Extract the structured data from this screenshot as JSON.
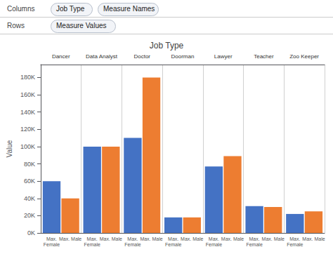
{
  "chart_data": {
    "type": "bar",
    "title": "Job Type",
    "annotations": [
      [
        "Columns",
        "Job Type",
        "Measure Names"
      ],
      [
        "Rows",
        "Measure Values"
      ]
    ],
    "ylabel": "Value",
    "categories": [
      "Dancer",
      "Data Analyst",
      "Doctor",
      "Doorman",
      "Lawyer",
      "Teacher",
      "Zoo Keeper"
    ],
    "series": [
      {
        "name": "Max.\nFemale",
        "color": "#4472c4",
        "values": [
          60000,
          100000,
          110000,
          18000,
          77000,
          31000,
          22000
        ]
      },
      {
        "name": "Max. Male",
        "color": "#ed7d31",
        "values": [
          40000,
          100000,
          180000,
          18000,
          89000,
          30000,
          25000
        ]
      }
    ],
    "ylim": [
      0,
      195000
    ],
    "yticks": [
      {
        "value": 0,
        "label": "0K"
      },
      {
        "value": 20000,
        "label": "20K"
      },
      {
        "value": 40000,
        "label": "40K"
      },
      {
        "value": 60000,
        "label": "60K"
      },
      {
        "value": 80000,
        "label": "80K"
      },
      {
        "value": 100000,
        "label": "100K"
      },
      {
        "value": 120000,
        "label": "120K"
      },
      {
        "value": 140000,
        "label": "140K"
      },
      {
        "value": 160000,
        "label": "160K"
      },
      {
        "value": 180000,
        "label": "180K"
      }
    ],
    "grid": false
  }
}
